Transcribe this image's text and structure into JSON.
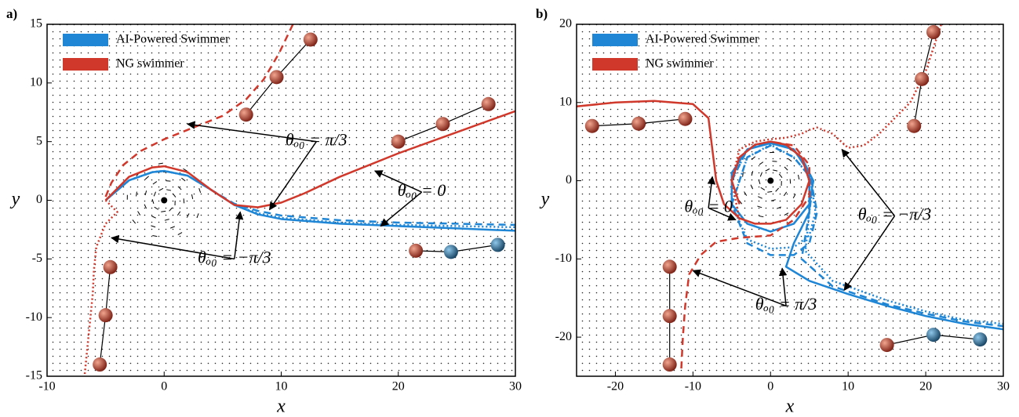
{
  "chart_data": [
    {
      "type": "line",
      "panel_label": "a)",
      "xlabel": "x",
      "ylabel": "y",
      "xlim": [
        -10,
        30
      ],
      "ylim": [
        -15,
        15
      ],
      "xticks": [
        -10,
        0,
        10,
        20,
        30
      ],
      "yticks": [
        -15,
        -10,
        -5,
        0,
        5,
        10,
        15
      ],
      "vortex": {
        "x": 0,
        "y": 0
      },
      "series": [
        {
          "name": "AI-Powered Swimmer",
          "color": "#1f86d6",
          "dash": "solid",
          "x": [
            -5,
            -3,
            -1,
            0,
            2,
            4,
            6,
            8,
            10,
            15,
            20,
            25,
            30
          ],
          "y": [
            0,
            1.7,
            2.4,
            2.5,
            2.1,
            0.9,
            -0.4,
            -1.2,
            -1.6,
            -2,
            -2.2,
            -2.4,
            -2.6
          ]
        },
        {
          "color": "#1f86d6",
          "dash": "dashed",
          "x": [
            -5,
            -3,
            -1,
            0,
            2,
            4,
            6,
            8,
            10,
            15,
            20,
            25,
            30
          ],
          "y": [
            0,
            1.7,
            2.4,
            2.5,
            2.1,
            0.9,
            -0.3,
            -0.9,
            -1.3,
            -1.7,
            -1.9,
            -2,
            -2.1
          ]
        },
        {
          "color": "#1f86d6",
          "dash": "dotted",
          "x": [
            -5,
            -3,
            -1,
            0,
            2,
            4,
            6,
            8,
            10,
            15,
            20,
            25,
            30
          ],
          "y": [
            0,
            1.7,
            2.4,
            2.5,
            2.1,
            0.9,
            -0.4,
            -1.1,
            -1.5,
            -1.9,
            -2.1,
            -2.2,
            -2.3
          ]
        },
        {
          "name": "NG swimmer",
          "color": "#d0382b",
          "dash": "solid",
          "x": [
            -5,
            -3,
            -1,
            0,
            2,
            4,
            6,
            8,
            10,
            12,
            15,
            20,
            25,
            30
          ],
          "y": [
            0,
            2,
            2.8,
            2.9,
            2.4,
            0.9,
            -0.4,
            -0.6,
            -0.2,
            0.6,
            2,
            4,
            5.8,
            7.6
          ]
        },
        {
          "color": "#d0382b",
          "dash": "dashed",
          "x": [
            -5,
            -4.5,
            -3.5,
            -2,
            0,
            2,
            5,
            7,
            8.5,
            9.8,
            11
          ],
          "y": [
            0.3,
            1.5,
            3,
            4.2,
            5.2,
            6,
            7.2,
            8.6,
            10.3,
            12.5,
            15
          ]
        },
        {
          "color": "#d0382b",
          "dash": "dotted",
          "x": [
            -5,
            -4,
            -5,
            -5.8,
            -6,
            -6.1,
            -6.3,
            -6.5,
            -6.8
          ],
          "y": [
            0,
            -1,
            -2,
            -4,
            -6,
            -8,
            -10,
            -12,
            -15
          ]
        }
      ],
      "markers": [
        {
          "x": [
            7,
            9.6,
            12.5
          ],
          "y": [
            7.3,
            10.5,
            13.7
          ],
          "colors": [
            "#c0392b",
            "#c0392b",
            "#c0392b"
          ]
        },
        {
          "x": [
            20,
            23.8,
            27.7
          ],
          "y": [
            5,
            6.5,
            8.2
          ],
          "colors": [
            "#c0392b",
            "#c0392b",
            "#c0392b"
          ]
        },
        {
          "x": [
            -5.5,
            -5,
            -4.6
          ],
          "y": [
            -14,
            -9.8,
            -5.7
          ],
          "colors": [
            "#c0392b",
            "#c0392b",
            "#c0392b"
          ]
        },
        {
          "x": [
            21.5,
            24.5,
            28.5
          ],
          "y": [
            -4.3,
            -4.4,
            -3.8
          ],
          "colors": [
            "#c0392b",
            "#2a7ab0",
            "#2a7ab0"
          ]
        }
      ],
      "annotations": [
        "θₒ₀ = π/3",
        "θₒ₀ = 0",
        "θₒ₀ = −π/3"
      ]
    },
    {
      "type": "line",
      "panel_label": "b)",
      "xlabel": "x",
      "ylabel": "y",
      "xlim": [
        -25,
        30
      ],
      "ylim": [
        -25,
        20
      ],
      "xticks": [
        -20,
        -10,
        0,
        10,
        20,
        30
      ],
      "yticks": [
        -20,
        -10,
        0,
        10,
        20
      ],
      "vortex": {
        "x": 0,
        "y": 0
      },
      "series": [
        {
          "name": "AI-Powered Swimmer",
          "color": "#1f86d6",
          "dash": "solid",
          "x": [
            -5,
            -4,
            -2,
            0,
            2,
            4,
            5.5,
            5,
            3,
            0,
            -3,
            -5,
            -5,
            -3,
            0,
            3,
            5,
            5,
            3,
            2,
            5,
            10,
            15,
            20,
            25,
            30
          ],
          "y": [
            0,
            3,
            4.6,
            5,
            4.6,
            3,
            0,
            -3,
            -5.5,
            -6.5,
            -5.5,
            -3,
            1,
            4,
            4.8,
            4,
            1,
            -4,
            -8,
            -11,
            -12.8,
            -14.5,
            -16,
            -17.3,
            -18.3,
            -19
          ]
        },
        {
          "color": "#1f86d6",
          "dash": "dashed",
          "x": [
            -5,
            -3,
            0,
            3,
            5,
            6,
            5,
            3,
            0,
            -3,
            -5,
            -3,
            0,
            3,
            5.5,
            5,
            4,
            8,
            15,
            20,
            25,
            30
          ],
          "y": [
            0,
            4,
            5,
            4,
            1,
            -4,
            -8,
            -9.5,
            -9.5,
            -8,
            -3,
            3,
            4.5,
            3,
            0,
            -4,
            -10,
            -13.5,
            -15.8,
            -17,
            -18,
            -18.6
          ]
        },
        {
          "color": "#1f86d6",
          "dash": "dotted",
          "x": [
            -5,
            -3,
            0,
            3,
            5,
            5.8,
            5,
            3,
            0,
            -3,
            -5,
            -3,
            0,
            3,
            5.5,
            5,
            4.5,
            8,
            15,
            20,
            25,
            30
          ],
          "y": [
            0,
            4,
            5,
            4,
            1,
            -4,
            -7,
            -8.5,
            -8.7,
            -7.5,
            -3,
            3,
            4.6,
            3,
            0,
            -4,
            -9,
            -12.8,
            -15.3,
            -16.7,
            -17.8,
            -18.3
          ]
        },
        {
          "name": "NG swimmer",
          "color": "#d0382b",
          "dash": "solid",
          "x": [
            -25,
            -20,
            -15,
            -10,
            -8,
            -7.5,
            -7,
            -6,
            -4,
            -2,
            0,
            2,
            4,
            5,
            4,
            2,
            0,
            -2,
            -4,
            -5,
            -4
          ],
          "y": [
            9.5,
            10,
            10.2,
            9.8,
            8,
            4,
            0,
            -3,
            -4.8,
            -5.5,
            -5.5,
            -5,
            -3,
            0,
            3,
            4.6,
            5,
            4.6,
            3,
            0,
            -3
          ]
        },
        {
          "color": "#d0382b",
          "dash": "dashed",
          "x": [
            -11.5,
            -11.3,
            -11,
            -10.5,
            -9,
            -7,
            -4,
            0,
            3,
            5,
            5,
            3,
            0
          ],
          "y": [
            -24,
            -20,
            -16,
            -12,
            -9.5,
            -7.8,
            -7.3,
            -7,
            -5,
            -2,
            2,
            4.5,
            5
          ]
        },
        {
          "color": "#d0382b",
          "dash": "dotted",
          "x": [
            -4,
            -5,
            -4,
            -2,
            0,
            2,
            4,
            5,
            6,
            8,
            10,
            12,
            14,
            16,
            18,
            20,
            22
          ],
          "y": [
            -5,
            0,
            4,
            5,
            5.3,
            5.5,
            6,
            6.5,
            6.8,
            6,
            4.2,
            4.5,
            6,
            8,
            10,
            14,
            20
          ]
        }
      ],
      "markers": [
        {
          "x": [
            -23,
            -17,
            -11
          ],
          "y": [
            7,
            7.3,
            7.9
          ],
          "colors": [
            "#c0392b",
            "#c0392b",
            "#c0392b"
          ]
        },
        {
          "x": [
            18.5,
            19.5,
            21
          ],
          "y": [
            7,
            13,
            19
          ],
          "colors": [
            "#c0392b",
            "#c0392b",
            "#c0392b"
          ]
        },
        {
          "x": [
            -13,
            -13,
            -13
          ],
          "y": [
            -11,
            -17.3,
            -23.5
          ],
          "colors": [
            "#c0392b",
            "#c0392b",
            "#c0392b"
          ]
        },
        {
          "x": [
            15,
            21,
            27
          ],
          "y": [
            -21,
            -19.7,
            -20.3
          ],
          "colors": [
            "#c0392b",
            "#2a7ab0",
            "#2a7ab0"
          ]
        }
      ],
      "annotations": [
        "θₒ₀ = 0",
        "θₒ₀ = −π/3",
        "θₒ₀ = π/3"
      ]
    }
  ]
}
